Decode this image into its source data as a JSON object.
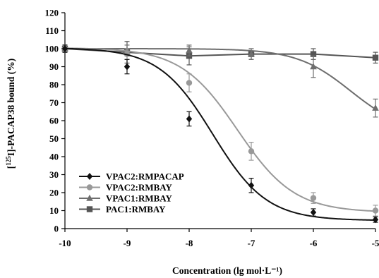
{
  "chart_data": {
    "type": "line",
    "xlabel": "Concentration (lg mol·L⁻¹)",
    "ylabel_prefix": "[",
    "ylabel_sup": "125",
    "ylabel_rest": "I]-PACAP38 bound (%)",
    "xlim": [
      -10,
      -5
    ],
    "ylim": [
      0,
      120
    ],
    "x_ticks": [
      -10,
      -9,
      -8,
      -7,
      -6,
      -5
    ],
    "x_tick_labels": [
      "-10",
      "-9",
      "-8",
      "-7",
      "-6",
      "-5"
    ],
    "y_ticks": [
      0,
      10,
      20,
      30,
      40,
      50,
      60,
      70,
      80,
      90,
      100,
      110,
      120
    ],
    "y_tick_labels": [
      "0",
      "10",
      "20",
      "30",
      "40",
      "50",
      "60",
      "70",
      "80",
      "90",
      "100",
      "110",
      "120"
    ],
    "grid": false,
    "legend_position": "bottom-left",
    "series": [
      {
        "name": "VPAC2:RMPACAP",
        "marker": "diamond",
        "color": "#111111",
        "x": [
          -10,
          -9,
          -8,
          -7,
          -6,
          -5
        ],
        "y": [
          100,
          90,
          61,
          24,
          9,
          5
        ],
        "err": [
          2,
          4,
          4,
          4,
          2,
          1.5
        ],
        "curve": {
          "top": 100.5,
          "bottom": 4.5,
          "ec50": -7.62,
          "hill": 1.0
        }
      },
      {
        "name": "VPAC2:RMBAY",
        "marker": "circle",
        "color": "#999999",
        "x": [
          -10,
          -9,
          -8,
          -7,
          -6,
          -5
        ],
        "y": [
          100,
          97,
          81,
          43,
          17,
          10
        ],
        "err": [
          2,
          3,
          5,
          5,
          3,
          3
        ],
        "curve": {
          "top": 100.5,
          "bottom": 9,
          "ec50": -7.22,
          "hill": 0.95
        }
      },
      {
        "name": "VPAC1:RMBAY",
        "marker": "triangle",
        "color": "#6e6e6e",
        "x": [
          -10,
          -9,
          -8,
          -7,
          -6,
          -5
        ],
        "y": [
          100,
          99,
          99,
          97,
          90,
          67
        ],
        "err": [
          2,
          3,
          3,
          3,
          6,
          5
        ],
        "curve": {
          "top": 100,
          "bottom": 53,
          "ec50": -5.4,
          "hill": 1.0
        }
      },
      {
        "name": "PAC1:RMBAY",
        "marker": "square",
        "color": "#555555",
        "x": [
          -10,
          -9,
          -8,
          -7,
          -6,
          -5
        ],
        "y": [
          100,
          98,
          96,
          97,
          97,
          95
        ],
        "err": [
          2,
          6,
          5,
          3,
          3,
          3
        ],
        "curve": null
      }
    ]
  }
}
